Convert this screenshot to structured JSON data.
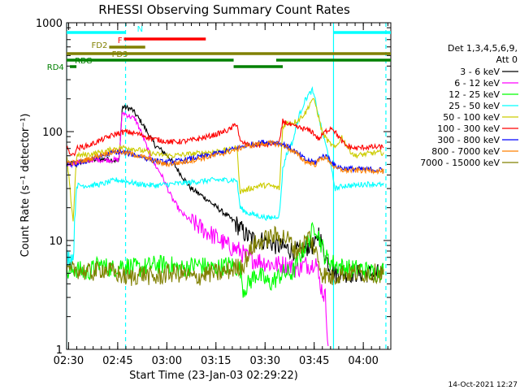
{
  "chart_data": {
    "type": "line",
    "title": "RHESSI Observing Summary Count Rates",
    "xlabel": "Start Time (23-Jan-03 02:29:22)",
    "ylabel": "Count Rate (s⁻¹ detector⁻¹)",
    "yscale": "log",
    "xlim": [
      0,
      99
    ],
    "ylim": [
      1,
      1000
    ],
    "x_ticks": [
      {
        "t": 0.6,
        "label": "02:30"
      },
      {
        "t": 15.6,
        "label": "02:45"
      },
      {
        "t": 30.6,
        "label": "03:00"
      },
      {
        "t": 45.6,
        "label": "03:15"
      },
      {
        "t": 60.6,
        "label": "03:30"
      },
      {
        "t": 75.6,
        "label": "03:45"
      },
      {
        "t": 90.6,
        "label": "04:00"
      }
    ],
    "y_ticks": [
      {
        "v": 1,
        "label": "1"
      },
      {
        "v": 10,
        "label": "10"
      },
      {
        "v": 100,
        "label": "100"
      },
      {
        "v": 1000,
        "label": "1000"
      }
    ],
    "legend_header": [
      "Det 1,3,4,5,6,9,",
      "Att 0"
    ],
    "legend_position": "right",
    "timestamp": "14-Oct-2021 12:27",
    "series": [
      {
        "name": "3 - 6 keV",
        "color": "#000000",
        "points": [
          [
            0,
            50
          ],
          [
            3,
            52
          ],
          [
            8,
            55
          ],
          [
            13,
            56
          ],
          [
            16,
            53
          ],
          [
            17,
            170
          ],
          [
            20,
            160
          ],
          [
            23,
            120
          ],
          [
            27,
            75
          ],
          [
            31,
            60
          ],
          [
            35,
            40
          ],
          [
            38,
            30
          ],
          [
            42,
            25
          ],
          [
            46,
            20
          ],
          [
            50,
            16
          ],
          [
            53,
            13
          ],
          [
            55,
            11
          ],
          [
            58,
            10
          ],
          [
            61,
            10
          ],
          [
            64,
            9
          ],
          [
            67,
            8.5
          ],
          [
            70,
            8
          ],
          [
            72,
            8
          ],
          [
            74,
            9
          ],
          [
            75,
            9
          ],
          [
            76,
            9
          ],
          [
            77,
            12
          ],
          [
            78,
            9
          ],
          [
            80,
            6
          ],
          [
            82,
            5
          ],
          [
            84,
            5
          ],
          [
            87,
            5
          ],
          [
            90,
            5
          ],
          [
            94,
            5
          ],
          [
            97,
            5
          ]
        ]
      },
      {
        "name": "6 - 12 keV",
        "color": "#ff00ff",
        "points": [
          [
            0,
            50
          ],
          [
            3,
            52
          ],
          [
            8,
            55
          ],
          [
            13,
            55
          ],
          [
            16,
            55
          ],
          [
            17,
            150
          ],
          [
            21,
            130
          ],
          [
            23,
            95
          ],
          [
            26,
            55
          ],
          [
            29,
            40
          ],
          [
            32,
            25
          ],
          [
            35,
            18
          ],
          [
            38,
            15
          ],
          [
            41,
            13
          ],
          [
            45,
            11
          ],
          [
            49,
            9
          ],
          [
            53,
            8
          ],
          [
            55,
            7
          ],
          [
            59,
            6.5
          ],
          [
            63,
            6
          ],
          [
            67,
            6
          ],
          [
            70,
            5.5
          ],
          [
            73,
            6
          ],
          [
            75,
            6
          ],
          [
            76,
            7
          ],
          [
            77,
            4.5
          ],
          [
            78,
            3.5
          ],
          [
            79,
            3
          ],
          [
            80,
            1
          ]
        ]
      },
      {
        "name": "12 - 25 keV",
        "color": "#00ff00",
        "points": [
          [
            0,
            5
          ],
          [
            3,
            5.5
          ],
          [
            6,
            5
          ],
          [
            10,
            6
          ],
          [
            14,
            5.5
          ],
          [
            17,
            6
          ],
          [
            22,
            5.5
          ],
          [
            27,
            6
          ],
          [
            31,
            6
          ],
          [
            35,
            5.5
          ],
          [
            40,
            6
          ],
          [
            45,
            5.5
          ],
          [
            50,
            6
          ],
          [
            53,
            5.5
          ],
          [
            54,
            3.5
          ],
          [
            58,
            5
          ],
          [
            62,
            4
          ],
          [
            66,
            5
          ],
          [
            69,
            5
          ],
          [
            71,
            7
          ],
          [
            73,
            9
          ],
          [
            75,
            12
          ],
          [
            76,
            14
          ],
          [
            77,
            11
          ],
          [
            79,
            7
          ],
          [
            82,
            6
          ],
          [
            86,
            5.5
          ],
          [
            90,
            5.5
          ],
          [
            94,
            5
          ],
          [
            97,
            5.5
          ]
        ]
      },
      {
        "name": "25 - 50 keV",
        "color": "#00ffff",
        "points": [
          [
            0,
            7
          ],
          [
            2,
            7
          ],
          [
            3,
            32
          ],
          [
            7,
            32
          ],
          [
            11,
            33
          ],
          [
            15,
            36
          ],
          [
            18,
            35
          ],
          [
            22,
            33
          ],
          [
            27,
            32
          ],
          [
            32,
            33
          ],
          [
            37,
            34
          ],
          [
            41,
            35
          ],
          [
            45,
            36
          ],
          [
            49,
            36
          ],
          [
            52,
            36
          ],
          [
            53,
            20
          ],
          [
            55,
            18
          ],
          [
            58,
            17
          ],
          [
            62,
            16
          ],
          [
            65,
            17
          ],
          [
            66,
            45
          ],
          [
            67,
            60
          ],
          [
            69,
            80
          ],
          [
            71,
            140
          ],
          [
            73,
            200
          ],
          [
            75,
            240
          ],
          [
            76,
            190
          ],
          [
            78,
            100
          ],
          [
            80,
            60
          ],
          [
            82,
            30
          ],
          [
            85,
            32
          ],
          [
            88,
            32
          ],
          [
            91,
            33
          ],
          [
            94,
            33
          ],
          [
            97,
            32
          ]
        ]
      },
      {
        "name": "50 - 100 keV",
        "color": "#cccc00",
        "points": [
          [
            0,
            60
          ],
          [
            2,
            15
          ],
          [
            3,
            60
          ],
          [
            7,
            62
          ],
          [
            11,
            65
          ],
          [
            15,
            70
          ],
          [
            18,
            72
          ],
          [
            22,
            68
          ],
          [
            27,
            62
          ],
          [
            32,
            60
          ],
          [
            37,
            62
          ],
          [
            42,
            64
          ],
          [
            46,
            66
          ],
          [
            50,
            68
          ],
          [
            52,
            72
          ],
          [
            53,
            28
          ],
          [
            56,
            30
          ],
          [
            59,
            32
          ],
          [
            62,
            32
          ],
          [
            65,
            30
          ],
          [
            66,
            110
          ],
          [
            67,
            120
          ],
          [
            69,
            120
          ],
          [
            71,
            130
          ],
          [
            73,
            150
          ],
          [
            75,
            200
          ],
          [
            76,
            180
          ],
          [
            78,
            100
          ],
          [
            80,
            80
          ],
          [
            82,
            70
          ],
          [
            84,
            90
          ],
          [
            86,
            70
          ],
          [
            88,
            60
          ],
          [
            91,
            62
          ],
          [
            94,
            64
          ],
          [
            97,
            64
          ]
        ]
      },
      {
        "name": "100 - 300 keV",
        "color": "#ff0000",
        "points": [
          [
            0,
            70
          ],
          [
            2,
            60
          ],
          [
            3,
            70
          ],
          [
            7,
            75
          ],
          [
            11,
            85
          ],
          [
            15,
            95
          ],
          [
            18,
            100
          ],
          [
            22,
            95
          ],
          [
            27,
            85
          ],
          [
            32,
            80
          ],
          [
            37,
            82
          ],
          [
            42,
            88
          ],
          [
            46,
            95
          ],
          [
            50,
            105
          ],
          [
            52,
            120
          ],
          [
            53,
            80
          ],
          [
            56,
            75
          ],
          [
            60,
            75
          ],
          [
            64,
            78
          ],
          [
            65,
            78
          ],
          [
            66,
            125
          ],
          [
            69,
            112
          ],
          [
            73,
            105
          ],
          [
            75,
            100
          ],
          [
            77,
            85
          ],
          [
            79,
            100
          ],
          [
            81,
            110
          ],
          [
            83,
            90
          ],
          [
            85,
            75
          ],
          [
            88,
            70
          ],
          [
            91,
            72
          ],
          [
            94,
            72
          ],
          [
            97,
            72
          ]
        ]
      },
      {
        "name": "300 - 800 keV",
        "color": "#0000ff",
        "points": [
          [
            0,
            50
          ],
          [
            3,
            50
          ],
          [
            7,
            55
          ],
          [
            11,
            60
          ],
          [
            15,
            65
          ],
          [
            18,
            64
          ],
          [
            22,
            60
          ],
          [
            26,
            55
          ],
          [
            30,
            52
          ],
          [
            35,
            54
          ],
          [
            40,
            58
          ],
          [
            45,
            62
          ],
          [
            50,
            68
          ],
          [
            55,
            75
          ],
          [
            60,
            80
          ],
          [
            64,
            80
          ],
          [
            67,
            75
          ],
          [
            70,
            65
          ],
          [
            73,
            55
          ],
          [
            76,
            52
          ],
          [
            78,
            60
          ],
          [
            80,
            58
          ],
          [
            82,
            48
          ],
          [
            85,
            46
          ],
          [
            90,
            45
          ],
          [
            94,
            45
          ],
          [
            97,
            44
          ]
        ]
      },
      {
        "name": "800 - 7000 keV",
        "color": "#ff8000",
        "points": [
          [
            0,
            52
          ],
          [
            3,
            52
          ],
          [
            7,
            56
          ],
          [
            11,
            62
          ],
          [
            15,
            66
          ],
          [
            18,
            64
          ],
          [
            22,
            60
          ],
          [
            26,
            55
          ],
          [
            30,
            50
          ],
          [
            35,
            52
          ],
          [
            40,
            56
          ],
          [
            45,
            60
          ],
          [
            50,
            66
          ],
          [
            55,
            74
          ],
          [
            60,
            78
          ],
          [
            64,
            78
          ],
          [
            67,
            73
          ],
          [
            70,
            63
          ],
          [
            73,
            53
          ],
          [
            76,
            50
          ],
          [
            78,
            58
          ],
          [
            80,
            55
          ],
          [
            82,
            46
          ],
          [
            85,
            44
          ],
          [
            90,
            44
          ],
          [
            94,
            44
          ],
          [
            97,
            43
          ]
        ]
      },
      {
        "name": "7000 - 15000 keV",
        "color": "#808000",
        "points": [
          [
            0,
            5
          ],
          [
            3,
            5.5
          ],
          [
            7,
            5
          ],
          [
            11,
            5.5
          ],
          [
            15,
            5
          ],
          [
            19,
            4.5
          ],
          [
            23,
            5
          ],
          [
            27,
            4.5
          ],
          [
            31,
            5
          ],
          [
            35,
            5
          ],
          [
            39,
            4.5
          ],
          [
            43,
            5
          ],
          [
            47,
            5
          ],
          [
            51,
            5.5
          ],
          [
            54,
            6
          ],
          [
            57,
            9
          ],
          [
            60,
            10
          ],
          [
            63,
            11
          ],
          [
            66,
            11
          ],
          [
            68,
            10
          ],
          [
            70,
            8
          ],
          [
            72,
            9
          ],
          [
            74,
            11
          ],
          [
            76,
            8
          ],
          [
            78,
            5
          ],
          [
            81,
            4.5
          ],
          [
            84,
            5
          ],
          [
            88,
            5
          ],
          [
            92,
            5
          ],
          [
            97,
            5
          ]
        ]
      }
    ],
    "state_bars": [
      {
        "label": "N",
        "color": "#00ffff",
        "segments": [
          [
            0,
            18
          ],
          [
            81.5,
            99
          ]
        ]
      },
      {
        "label": "F",
        "color": "#ff0000",
        "segments": [
          [
            17.5,
            42.5
          ]
        ]
      },
      {
        "label": "FD2",
        "color": "#808000",
        "segments": [
          [
            13,
            24
          ]
        ]
      },
      {
        "label": "FD3",
        "color": "#808000",
        "segments": [
          [
            0,
            99
          ]
        ]
      },
      {
        "label": "RBG",
        "color": "#008000",
        "segments": [
          [
            0,
            51
          ],
          [
            64,
            99
          ]
        ]
      },
      {
        "label": "RD4",
        "color": "#008000",
        "segments": [
          [
            1,
            3
          ],
          [
            51,
            66
          ]
        ]
      }
    ],
    "vertical_markers": [
      {
        "t": 0,
        "color": "#00ffff",
        "style": "solid"
      },
      {
        "t": 18,
        "color": "#00ffff",
        "style": "dashed"
      },
      {
        "t": 81.5,
        "color": "#00ffff",
        "style": "solid"
      },
      {
        "t": 97.5,
        "color": "#00ffff",
        "style": "dashed"
      }
    ]
  }
}
